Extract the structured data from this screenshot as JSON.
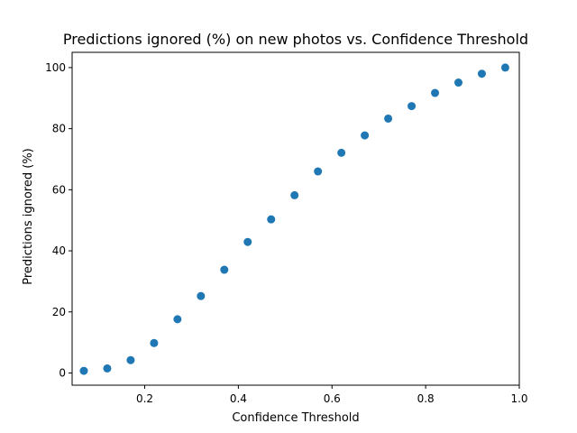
{
  "chart_data": {
    "type": "scatter",
    "title": "Predictions ignored (%) on new photos vs. Confidence Threshold",
    "xlabel": "Confidence Threshold",
    "ylabel": "Predictions ignored (%)",
    "xlim": [
      0.045,
      1.0
    ],
    "ylim": [
      -4,
      105
    ],
    "xticks": [
      0.2,
      0.4,
      0.6,
      0.8,
      1.0
    ],
    "xtick_labels": [
      "0.2",
      "0.4",
      "0.6",
      "0.8",
      "1.0"
    ],
    "yticks": [
      0,
      20,
      40,
      60,
      80,
      100
    ],
    "ytick_labels": [
      "0",
      "20",
      "40",
      "60",
      "80",
      "100"
    ],
    "grid": false,
    "marker_color": "#1f77b4",
    "series": [
      {
        "x": [
          0.07,
          0.12,
          0.17,
          0.22,
          0.27,
          0.32,
          0.37,
          0.42,
          0.47,
          0.52,
          0.57,
          0.62,
          0.67,
          0.72,
          0.77,
          0.82,
          0.87,
          0.92,
          0.97
        ],
        "y": [
          0.7,
          1.5,
          4.2,
          9.8,
          17.6,
          25.2,
          33.8,
          42.9,
          50.3,
          58.2,
          66.0,
          72.1,
          77.8,
          83.3,
          87.4,
          91.7,
          95.1,
          98.0,
          100.0
        ]
      }
    ]
  }
}
